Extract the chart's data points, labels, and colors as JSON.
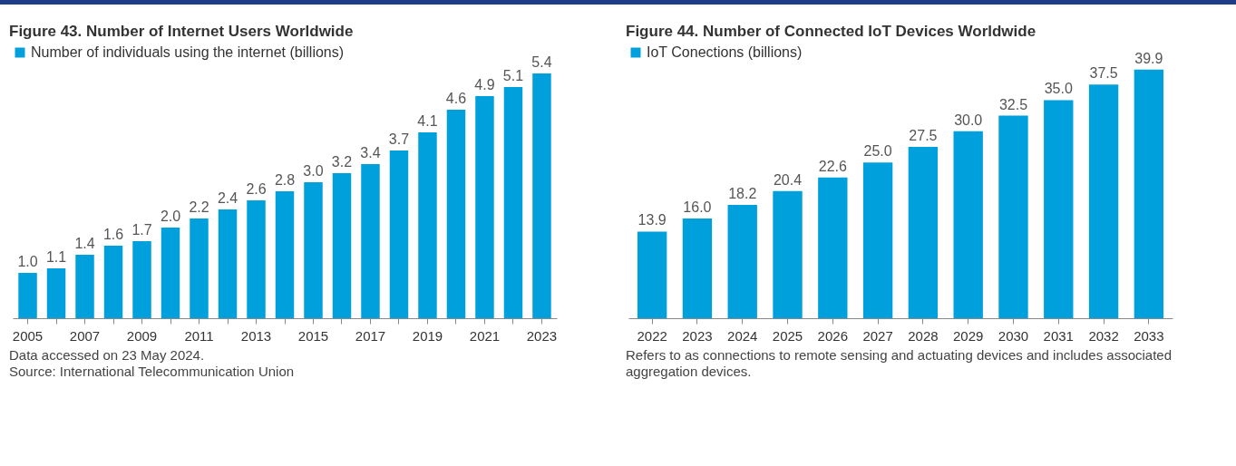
{
  "chart_data": [
    {
      "type": "bar",
      "title": "Figure 43. Number of Internet Users Worldwide",
      "categories": [
        "2005",
        null,
        "2007",
        null,
        "2009",
        null,
        "2011",
        null,
        "2013",
        null,
        "2015",
        null,
        "2017",
        null,
        "2019",
        null,
        "2021",
        null,
        "2023"
      ],
      "series": [
        {
          "name": "Number of individuals using the internet (billions)",
          "color": "#00a0dc",
          "values": [
            1.0,
            1.1,
            1.4,
            1.6,
            1.7,
            2.0,
            2.2,
            2.4,
            2.6,
            2.8,
            3.0,
            3.2,
            3.4,
            3.7,
            4.1,
            4.6,
            4.9,
            5.1,
            5.4
          ],
          "value_labels": [
            "1.0",
            "1.1",
            "1.4",
            "1.6",
            "1.7",
            "2.0",
            "2.2",
            "2.4",
            "2.6",
            "2.8",
            "3.0",
            "3.2",
            "3.4",
            "3.7",
            "4.1",
            "4.6",
            "4.9",
            "5.1",
            "5.4"
          ]
        }
      ],
      "legend": "top",
      "annotations": [
        "Data accessed on 23 May 2024.",
        "Source: International Telecommunication Union"
      ]
    },
    {
      "type": "bar",
      "title": "Figure 44. Number of Connected IoT Devices Worldwide",
      "categories": [
        "2022",
        "2023",
        "2024",
        "2025",
        "2026",
        "2027",
        "2028",
        "2029",
        "2030",
        "2031",
        "2032",
        "2033"
      ],
      "series": [
        {
          "name": "IoT Conections (billions)",
          "color": "#00a0dc",
          "values": [
            13.9,
            16.0,
            18.2,
            20.4,
            22.6,
            25.0,
            27.5,
            30.0,
            32.5,
            35.0,
            37.5,
            39.9
          ],
          "value_labels": [
            "13.9",
            "16.0",
            "18.2",
            "20.4",
            "22.6",
            "25.0",
            "27.5",
            "30.0",
            "32.5",
            "35.0",
            "37.5",
            "39.9"
          ]
        }
      ],
      "legend": "top",
      "annotations": [
        "Refers to as connections to remote sensing and actuating devices and includes associated aggregation devices."
      ]
    }
  ]
}
